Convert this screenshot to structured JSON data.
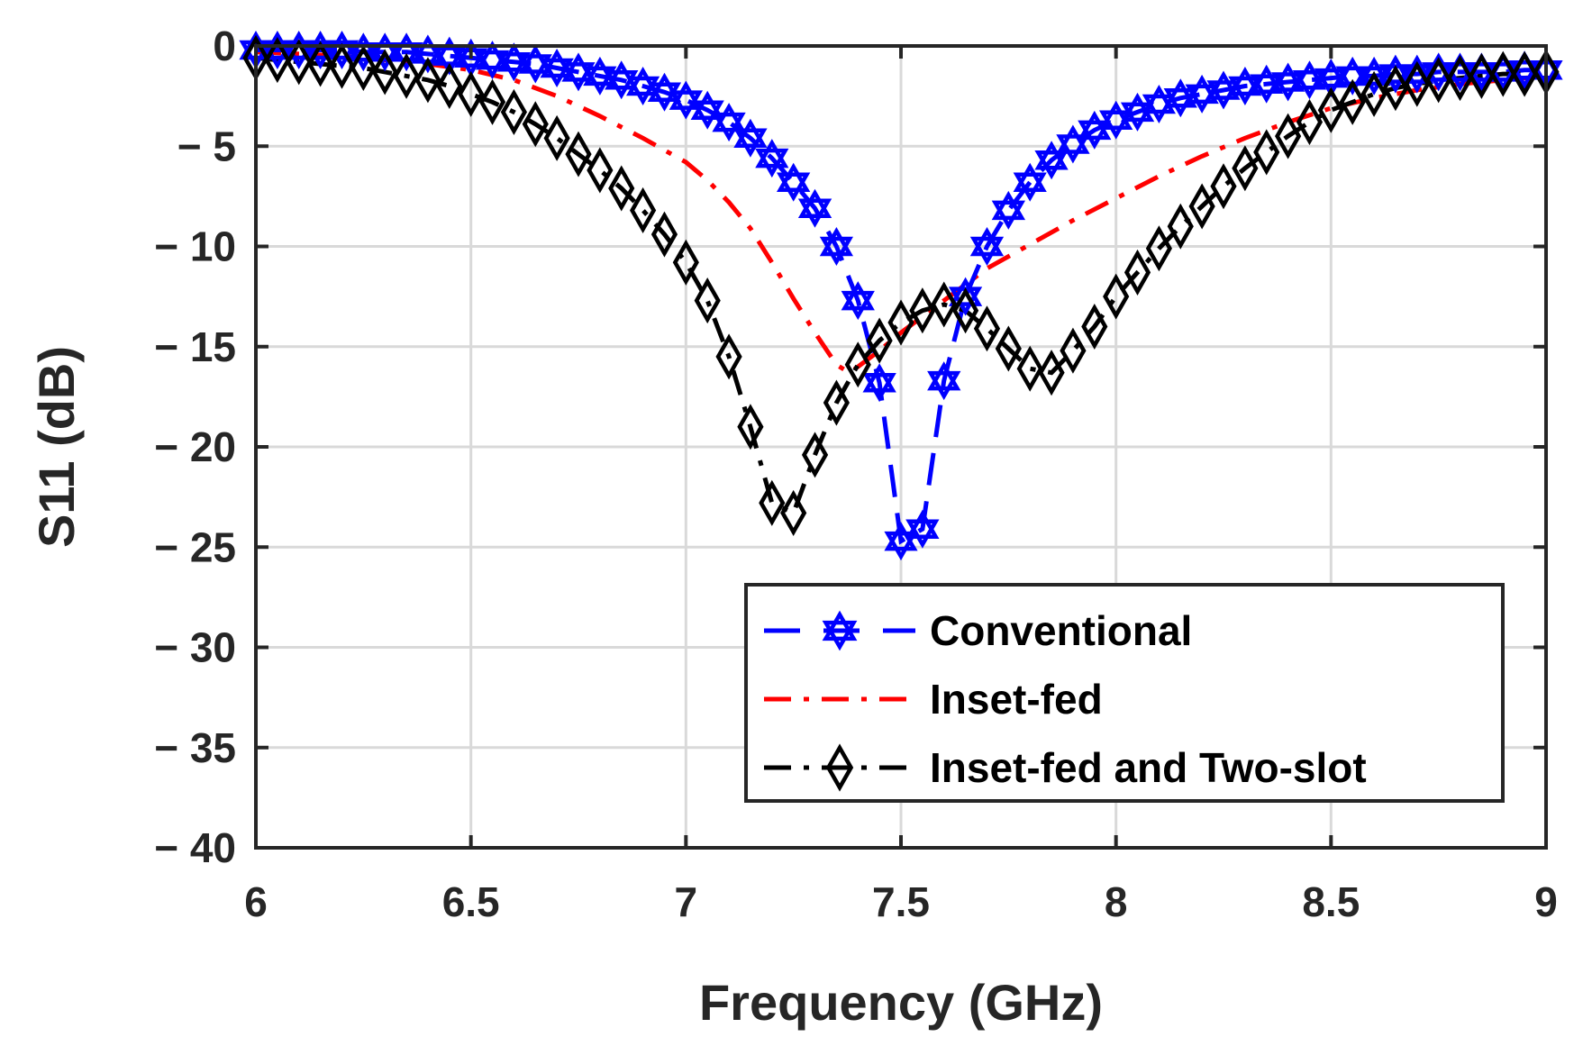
{
  "chart_data": {
    "type": "line",
    "title": "",
    "xlabel": "Frequency (GHz)",
    "ylabel": "S11 (dB)",
    "xlim": [
      6,
      9
    ],
    "ylim": [
      -40,
      0
    ],
    "xticks": [
      6,
      6.5,
      7,
      7.5,
      8,
      8.5,
      9
    ],
    "xtick_labels": [
      "6",
      "6.5",
      "7",
      "7.5",
      "8",
      "8.5",
      "9"
    ],
    "yticks": [
      0,
      -5,
      -10,
      -15,
      -20,
      -25,
      -30,
      -35,
      -40
    ],
    "ytick_labels": [
      "0",
      "− 5",
      "− 10",
      "− 15",
      "− 20",
      "− 25",
      "− 30",
      "− 35",
      "− 40"
    ],
    "grid": true,
    "legend_position": "bottom-right",
    "series": [
      {
        "name": "Conventional",
        "color": "#0000ff",
        "line_style": "dashed",
        "marker": "hexagram",
        "x": [
          6.0,
          6.05,
          6.1,
          6.15,
          6.2,
          6.25,
          6.3,
          6.35,
          6.4,
          6.45,
          6.5,
          6.55,
          6.6,
          6.65,
          6.7,
          6.75,
          6.8,
          6.85,
          6.9,
          6.95,
          7.0,
          7.05,
          7.1,
          7.15,
          7.2,
          7.25,
          7.3,
          7.35,
          7.4,
          7.45,
          7.5,
          7.55,
          7.6,
          7.65,
          7.7,
          7.75,
          7.8,
          7.85,
          7.9,
          7.95,
          8.0,
          8.05,
          8.1,
          8.15,
          8.2,
          8.25,
          8.3,
          8.35,
          8.4,
          8.45,
          8.5,
          8.55,
          8.6,
          8.65,
          8.7,
          8.75,
          8.8,
          8.85,
          8.9,
          8.95,
          9.0
        ],
        "y": [
          -0.2,
          -0.2,
          -0.2,
          -0.2,
          -0.2,
          -0.3,
          -0.3,
          -0.3,
          -0.4,
          -0.5,
          -0.6,
          -0.7,
          -0.8,
          -0.9,
          -1.1,
          -1.3,
          -1.5,
          -1.7,
          -2.0,
          -2.3,
          -2.7,
          -3.2,
          -3.8,
          -4.6,
          -5.6,
          -6.8,
          -8.1,
          -10.0,
          -12.7,
          -16.8,
          -24.7,
          -24.1,
          -16.7,
          -12.5,
          -10.0,
          -8.2,
          -6.8,
          -5.7,
          -4.9,
          -4.2,
          -3.7,
          -3.3,
          -2.9,
          -2.6,
          -2.4,
          -2.2,
          -2.0,
          -1.9,
          -1.8,
          -1.7,
          -1.6,
          -1.5,
          -1.5,
          -1.4,
          -1.4,
          -1.3,
          -1.3,
          -1.3,
          -1.3,
          -1.2,
          -1.2
        ]
      },
      {
        "name": "Inset-fed",
        "color": "#ff0000",
        "line_style": "dashdot",
        "marker": "none",
        "x": [
          6.0,
          6.1,
          6.2,
          6.3,
          6.4,
          6.5,
          6.6,
          6.7,
          6.8,
          6.9,
          7.0,
          7.05,
          7.1,
          7.15,
          7.2,
          7.25,
          7.3,
          7.35,
          7.38,
          7.4,
          7.45,
          7.5,
          7.55,
          7.6,
          7.65,
          7.7,
          7.8,
          7.9,
          8.0,
          8.1,
          8.2,
          8.3,
          8.4,
          8.5,
          8.6,
          8.7,
          8.8,
          8.9,
          9.0
        ],
        "y": [
          -0.3,
          -0.4,
          -0.5,
          -0.7,
          -0.9,
          -1.2,
          -1.7,
          -2.5,
          -3.5,
          -4.6,
          -5.8,
          -6.7,
          -7.8,
          -9.1,
          -10.8,
          -12.6,
          -14.3,
          -15.9,
          -16.3,
          -16.0,
          -15.2,
          -14.3,
          -13.5,
          -12.7,
          -11.9,
          -11.1,
          -9.9,
          -8.7,
          -7.6,
          -6.5,
          -5.5,
          -4.6,
          -3.8,
          -3.1,
          -2.6,
          -2.2,
          -1.9,
          -1.7,
          -1.5
        ]
      },
      {
        "name": "Inset-fed and Two-slot",
        "color": "#000000",
        "line_style": "dashdot",
        "marker": "diamond",
        "x": [
          6.0,
          6.05,
          6.1,
          6.15,
          6.2,
          6.25,
          6.3,
          6.35,
          6.4,
          6.45,
          6.5,
          6.55,
          6.6,
          6.65,
          6.7,
          6.75,
          6.8,
          6.85,
          6.9,
          6.95,
          7.0,
          7.05,
          7.1,
          7.15,
          7.2,
          7.25,
          7.3,
          7.35,
          7.4,
          7.45,
          7.5,
          7.55,
          7.6,
          7.65,
          7.7,
          7.75,
          7.8,
          7.85,
          7.9,
          7.95,
          8.0,
          8.05,
          8.1,
          8.15,
          8.2,
          8.25,
          8.3,
          8.35,
          8.4,
          8.45,
          8.5,
          8.55,
          8.6,
          8.65,
          8.7,
          8.75,
          8.8,
          8.85,
          8.9,
          8.95,
          9.0
        ],
        "y": [
          -0.6,
          -0.7,
          -0.8,
          -0.9,
          -1.0,
          -1.1,
          -1.3,
          -1.5,
          -1.7,
          -2.0,
          -2.4,
          -2.8,
          -3.3,
          -3.9,
          -4.6,
          -5.4,
          -6.2,
          -7.1,
          -8.2,
          -9.4,
          -10.8,
          -12.7,
          -15.5,
          -19.0,
          -22.8,
          -23.3,
          -20.4,
          -17.8,
          -15.9,
          -14.7,
          -13.8,
          -13.2,
          -12.9,
          -13.2,
          -14.1,
          -15.1,
          -16.1,
          -16.3,
          -15.2,
          -14.0,
          -12.5,
          -11.3,
          -10.1,
          -9.0,
          -8.0,
          -7.0,
          -6.1,
          -5.3,
          -4.5,
          -3.8,
          -3.2,
          -2.8,
          -2.4,
          -2.1,
          -1.9,
          -1.7,
          -1.6,
          -1.5,
          -1.4,
          -1.4,
          -1.3
        ]
      }
    ]
  }
}
